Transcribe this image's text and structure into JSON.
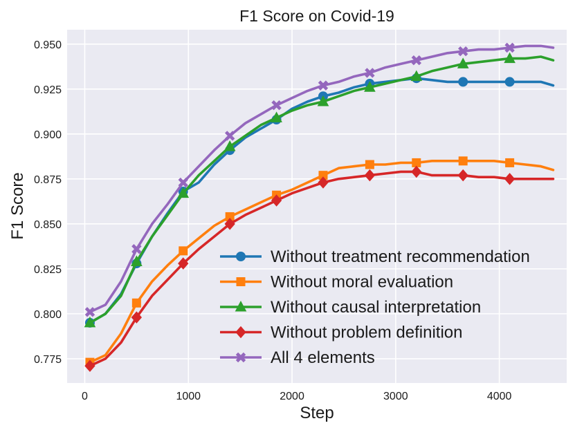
{
  "chart_data": {
    "type": "line",
    "title": "F1 Score on Covid-19",
    "xlabel": "Step",
    "ylabel": "F1 Score",
    "xlim": [
      -170,
      4650
    ],
    "ylim": [
      0.7615,
      0.958
    ],
    "xticks": [
      0,
      1000,
      2000,
      3000,
      4000
    ],
    "xtick_labels": [
      "0",
      "1000",
      "2000",
      "3000",
      "4000"
    ],
    "yticks": [
      0.775,
      0.8,
      0.825,
      0.85,
      0.875,
      0.9,
      0.925,
      0.95
    ],
    "ytick_labels": [
      "0.775",
      "0.800",
      "0.825",
      "0.850",
      "0.875",
      "0.900",
      "0.925",
      "0.950"
    ],
    "grid": true,
    "background": "#eaeaf2",
    "legend_position": "lower-right",
    "series": [
      {
        "name": "Without treatment recommendation",
        "color": "#1f77b4",
        "marker": "circle",
        "x": [
          50,
          200,
          350,
          500,
          650,
          800,
          950,
          1100,
          1250,
          1400,
          1550,
          1700,
          1850,
          2000,
          2150,
          2300,
          2450,
          2600,
          2750,
          2900,
          3050,
          3200,
          3350,
          3500,
          3650,
          3800,
          3950,
          4100,
          4250,
          4400,
          4520
        ],
        "y": [
          0.795,
          0.8,
          0.811,
          0.828,
          0.843,
          0.856,
          0.868,
          0.873,
          0.883,
          0.891,
          0.898,
          0.903,
          0.908,
          0.914,
          0.918,
          0.921,
          0.923,
          0.926,
          0.928,
          0.929,
          0.93,
          0.931,
          0.93,
          0.929,
          0.929,
          0.929,
          0.929,
          0.929,
          0.929,
          0.929,
          0.927
        ],
        "marker_x": [
          50,
          500,
          950,
          1400,
          1850,
          2300,
          2750,
          3200,
          3650,
          4100
        ]
      },
      {
        "name": "Without moral evaluation",
        "color": "#ff7f0e",
        "marker": "square",
        "x": [
          50,
          200,
          350,
          500,
          650,
          800,
          950,
          1100,
          1250,
          1400,
          1550,
          1700,
          1850,
          2000,
          2150,
          2300,
          2450,
          2600,
          2750,
          2900,
          3050,
          3200,
          3350,
          3500,
          3650,
          3800,
          3950,
          4100,
          4250,
          4400,
          4520
        ],
        "y": [
          0.773,
          0.777,
          0.789,
          0.806,
          0.818,
          0.827,
          0.835,
          0.842,
          0.849,
          0.854,
          0.858,
          0.862,
          0.866,
          0.869,
          0.873,
          0.877,
          0.881,
          0.882,
          0.883,
          0.883,
          0.884,
          0.884,
          0.885,
          0.885,
          0.885,
          0.885,
          0.885,
          0.884,
          0.883,
          0.882,
          0.88
        ],
        "marker_x": [
          50,
          500,
          950,
          1400,
          1850,
          2300,
          2750,
          3200,
          3650,
          4100
        ]
      },
      {
        "name": "Without causal interpretation",
        "color": "#2ca02c",
        "marker": "triangle",
        "x": [
          50,
          200,
          350,
          500,
          650,
          800,
          950,
          1100,
          1250,
          1400,
          1550,
          1700,
          1850,
          2000,
          2150,
          2300,
          2450,
          2600,
          2750,
          2900,
          3050,
          3200,
          3350,
          3500,
          3650,
          3800,
          3950,
          4100,
          4250,
          4400,
          4520
        ],
        "y": [
          0.795,
          0.8,
          0.81,
          0.829,
          0.843,
          0.855,
          0.867,
          0.877,
          0.885,
          0.893,
          0.899,
          0.905,
          0.909,
          0.913,
          0.916,
          0.918,
          0.921,
          0.924,
          0.926,
          0.928,
          0.93,
          0.932,
          0.935,
          0.937,
          0.939,
          0.94,
          0.941,
          0.942,
          0.942,
          0.943,
          0.941
        ],
        "marker_x": [
          50,
          500,
          950,
          1400,
          1850,
          2300,
          2750,
          3200,
          3650,
          4100
        ]
      },
      {
        "name": "Without problem definition",
        "color": "#d62728",
        "marker": "diamond",
        "x": [
          50,
          200,
          350,
          500,
          650,
          800,
          950,
          1100,
          1250,
          1400,
          1550,
          1700,
          1850,
          2000,
          2150,
          2300,
          2450,
          2600,
          2750,
          2900,
          3050,
          3200,
          3350,
          3500,
          3650,
          3800,
          3950,
          4100,
          4250,
          4400,
          4520
        ],
        "y": [
          0.771,
          0.775,
          0.784,
          0.798,
          0.81,
          0.819,
          0.828,
          0.836,
          0.843,
          0.85,
          0.855,
          0.859,
          0.863,
          0.867,
          0.87,
          0.873,
          0.875,
          0.876,
          0.877,
          0.878,
          0.879,
          0.879,
          0.877,
          0.877,
          0.877,
          0.876,
          0.876,
          0.875,
          0.875,
          0.875,
          0.875
        ],
        "marker_x": [
          50,
          500,
          950,
          1400,
          1850,
          2300,
          2750,
          3200,
          3650,
          4100
        ]
      },
      {
        "name": "All 4 elements",
        "color": "#9467bd",
        "marker": "x",
        "x": [
          50,
          200,
          350,
          500,
          650,
          800,
          950,
          1100,
          1250,
          1400,
          1550,
          1700,
          1850,
          2000,
          2150,
          2300,
          2450,
          2600,
          2750,
          2900,
          3050,
          3200,
          3350,
          3500,
          3650,
          3800,
          3950,
          4100,
          4250,
          4400,
          4520
        ],
        "y": [
          0.801,
          0.805,
          0.818,
          0.836,
          0.85,
          0.861,
          0.873,
          0.882,
          0.891,
          0.899,
          0.906,
          0.911,
          0.916,
          0.92,
          0.924,
          0.927,
          0.929,
          0.932,
          0.934,
          0.937,
          0.939,
          0.941,
          0.943,
          0.945,
          0.946,
          0.947,
          0.947,
          0.948,
          0.949,
          0.949,
          0.948
        ],
        "marker_x": [
          50,
          500,
          950,
          1400,
          1850,
          2300,
          2750,
          3200,
          3650,
          4100
        ]
      }
    ]
  }
}
